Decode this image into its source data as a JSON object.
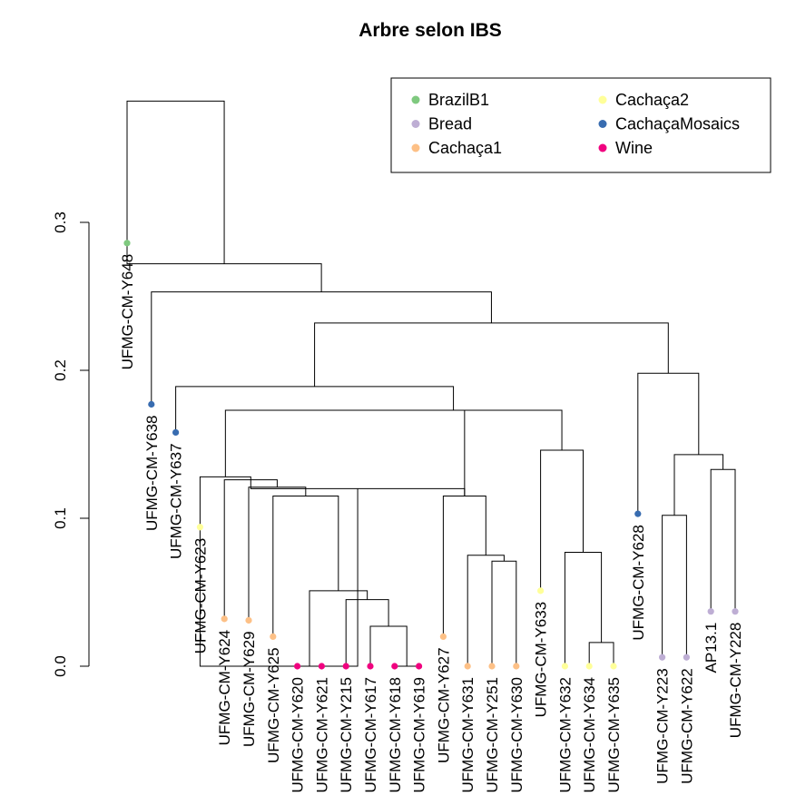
{
  "chart_data": {
    "type": "dendrogram",
    "title": "Arbre selon IBS",
    "ylabel": "",
    "ylim": [
      0,
      0.3
    ],
    "yticks": [
      0.0,
      0.1,
      0.2,
      0.3
    ],
    "ytick_labels": [
      "0.0",
      "0.1",
      "0.2",
      "0.3"
    ],
    "legend": {
      "placement": "top-right",
      "entries": [
        {
          "name": "BrazilB1",
          "color": "#7FC97F"
        },
        {
          "name": "Bread",
          "color": "#BEAED4"
        },
        {
          "name": "Cachaça1",
          "color": "#FDC086"
        },
        {
          "name": "Cachaça2",
          "color": "#FFFF99"
        },
        {
          "name": "CachaçaMosaics",
          "color": "#386CB0"
        },
        {
          "name": "Wine",
          "color": "#F0027F"
        }
      ]
    },
    "leaves": [
      {
        "label": "UFMG-CM-Y648",
        "height": 0.286,
        "group": "BrazilB1"
      },
      {
        "label": "UFMG-CM-Y638",
        "height": 0.177,
        "group": "CachaçaMosaics"
      },
      {
        "label": "UFMG-CM-Y637",
        "height": 0.158,
        "group": "CachaçaMosaics"
      },
      {
        "label": "UFMG-CM-Y623",
        "height": 0.094,
        "group": "Cachaça2"
      },
      {
        "label": "UFMG-CM-Y624",
        "height": 0.032,
        "group": "Cachaça1"
      },
      {
        "label": "UFMG-CM-Y629",
        "height": 0.031,
        "group": "Cachaça1"
      },
      {
        "label": "UFMG-CM-Y625",
        "height": 0.02,
        "group": "Cachaça1"
      },
      {
        "label": "UFMG-CM-Y620",
        "height": 0.0,
        "group": "Wine"
      },
      {
        "label": "UFMG-CM-Y621",
        "height": 0.0,
        "group": "Wine"
      },
      {
        "label": "UFMG-CM-Y215",
        "height": 0.0,
        "group": "Wine"
      },
      {
        "label": "UFMG-CM-Y617",
        "height": 0.0,
        "group": "Wine"
      },
      {
        "label": "UFMG-CM-Y618",
        "height": 0.0,
        "group": "Wine"
      },
      {
        "label": "UFMG-CM-Y619",
        "height": 0.0,
        "group": "Wine"
      },
      {
        "label": "UFMG-CM-Y627",
        "height": 0.02,
        "group": "Cachaça1"
      },
      {
        "label": "UFMG-CM-Y631",
        "height": 0.0,
        "group": "Cachaça1"
      },
      {
        "label": "UFMG-CM-Y251",
        "height": 0.0,
        "group": "Cachaça1"
      },
      {
        "label": "UFMG-CM-Y630",
        "height": 0.0,
        "group": "Cachaça1"
      },
      {
        "label": "UFMG-CM-Y633",
        "height": 0.051,
        "group": "Cachaça2"
      },
      {
        "label": "UFMG-CM-Y632",
        "height": 0.0,
        "group": "Cachaça2"
      },
      {
        "label": "UFMG-CM-Y634",
        "height": 0.0,
        "group": "Cachaça2"
      },
      {
        "label": "UFMG-CM-Y635",
        "height": 0.0,
        "group": "Cachaça2"
      },
      {
        "label": "UFMG-CM-Y628",
        "height": 0.103,
        "group": "CachaçaMosaics"
      },
      {
        "label": "UFMG-CM-Y223",
        "height": 0.006,
        "group": "Bread"
      },
      {
        "label": "UFMG-CM-Y622",
        "height": 0.006,
        "group": "Bread"
      },
      {
        "label": "AP13.1",
        "height": 0.037,
        "group": "Bread"
      },
      {
        "label": "UFMG-CM-Y228",
        "height": 0.037,
        "group": "Bread"
      }
    ],
    "merges": [
      {
        "children": [
          "L12",
          "L13"
        ],
        "height": 0.0
      },
      {
        "children": [
          "L15",
          "L16"
        ],
        "height": 0.0
      },
      {
        "children": [
          "L20",
          "L21"
        ],
        "height": 0.016
      },
      {
        "children": [
          "L11",
          "M0"
        ],
        "height": 0.027
      },
      {
        "children": [
          "L10",
          "M3"
        ],
        "height": 0.045
      },
      {
        "children": [
          "L8",
          "L9"
        ],
        "height": 0.0
      },
      {
        "children": [
          "M5",
          "M4"
        ],
        "height": 0.051
      },
      {
        "children": [
          "L17",
          "M1"
        ],
        "height": 0.075
      },
      {
        "children": [
          "L19",
          "M2"
        ],
        "height": 0.077
      },
      {
        "children": [
          "L23",
          "L24"
        ],
        "height": 0.102
      },
      {
        "children": [
          "L14",
          "M7"
        ],
        "height": 0.115
      },
      {
        "children": [
          "L7",
          "M6"
        ],
        "height": 0.115
      },
      {
        "children": [
          "L6",
          "M11"
        ],
        "height": 0.121
      },
      {
        "children": [
          "L25",
          "L26"
        ],
        "height": 0.133
      },
      {
        "children": [
          "M9",
          "M13"
        ],
        "height": 0.143
      },
      {
        "children": [
          "L18",
          "M8"
        ],
        "height": 0.146
      },
      {
        "children": [
          "L5",
          "M12"
        ],
        "height": 0.126
      },
      {
        "children": [
          "L4",
          "M16"
        ],
        "height": 0.128
      },
      {
        "children": [
          "L22",
          "M14"
        ],
        "height": 0.198
      },
      {
        "children": [
          "M17",
          "M10"
        ],
        "height": 0.172
      },
      {
        "children": [
          "M19",
          "M15"
        ],
        "height": 0.173
      },
      {
        "children": [
          "L3",
          "M20"
        ],
        "height": 0.189
      },
      {
        "children": [
          "M21",
          "M18"
        ],
        "height": 0.232
      },
      {
        "children": [
          "L2",
          "M22"
        ],
        "height": 0.253
      },
      {
        "children": [
          "L1",
          "M23"
        ],
        "height": 0.272
      },
      {
        "children": [
          "M24",
          "M24b"
        ],
        "height": 0.382
      }
    ]
  }
}
